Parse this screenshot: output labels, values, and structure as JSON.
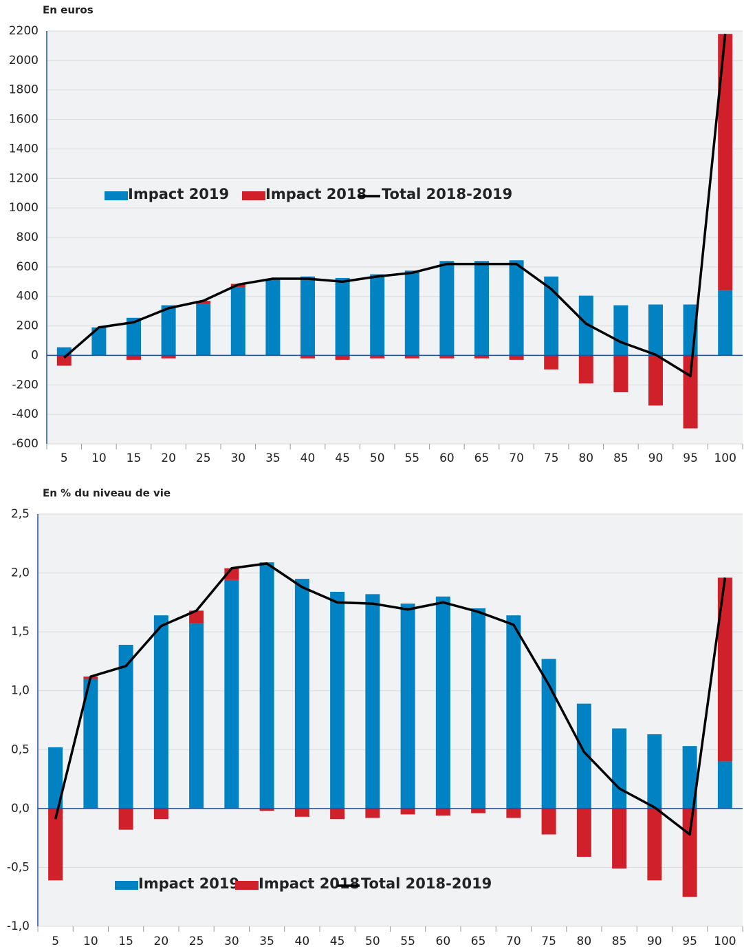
{
  "chart_data": [
    {
      "type": "bar",
      "title": "En euros",
      "categories": [
        5,
        10,
        15,
        20,
        25,
        30,
        35,
        40,
        45,
        50,
        55,
        60,
        65,
        70,
        75,
        80,
        85,
        90,
        95,
        100
      ],
      "series": [
        {
          "name": "Impact 2019",
          "type": "bar",
          "color": "#0082c3",
          "values": [
            55,
            190,
            255,
            340,
            350,
            460,
            520,
            535,
            525,
            550,
            575,
            640,
            640,
            645,
            535,
            405,
            340,
            345,
            345,
            440
          ]
        },
        {
          "name": "Impact 2018",
          "type": "bar",
          "color": "#d0202a",
          "values": [
            -70,
            0,
            -30,
            -20,
            20,
            25,
            0,
            -20,
            -30,
            -20,
            -20,
            -20,
            -20,
            -30,
            -95,
            -190,
            -250,
            -340,
            -495,
            1740
          ]
        },
        {
          "name": "Total 2018-2019",
          "type": "line",
          "color": "#000000",
          "values": [
            -15,
            190,
            225,
            320,
            370,
            480,
            520,
            520,
            500,
            535,
            560,
            620,
            620,
            620,
            450,
            215,
            90,
            5,
            -140,
            2180
          ]
        }
      ],
      "ylim": [
        -600,
        2200
      ],
      "yticks": [
        -600,
        -400,
        -200,
        0,
        200,
        400,
        600,
        800,
        1000,
        1200,
        1400,
        1600,
        1800,
        2000,
        2200
      ],
      "grid": true
    },
    {
      "type": "bar",
      "title": "En % du niveau de vie",
      "categories": [
        5,
        10,
        15,
        20,
        25,
        30,
        35,
        40,
        45,
        50,
        55,
        60,
        65,
        70,
        75,
        80,
        85,
        90,
        95,
        100
      ],
      "series": [
        {
          "name": "Impact 2019",
          "type": "bar",
          "color": "#0082c3",
          "values": [
            0.52,
            1.1,
            1.39,
            1.64,
            1.57,
            1.94,
            2.09,
            1.95,
            1.84,
            1.82,
            1.74,
            1.8,
            1.7,
            1.64,
            1.27,
            0.89,
            0.68,
            0.63,
            0.53,
            0.4
          ]
        },
        {
          "name": "Impact 2018",
          "type": "bar",
          "color": "#d0202a",
          "values": [
            -0.61,
            0.02,
            -0.18,
            -0.09,
            0.11,
            0.1,
            -0.02,
            -0.07,
            -0.09,
            -0.08,
            -0.05,
            -0.06,
            -0.04,
            -0.08,
            -0.22,
            -0.41,
            -0.51,
            -0.61,
            -0.75,
            1.56
          ]
        },
        {
          "name": "Total 2018-2019",
          "type": "line",
          "color": "#000000",
          "values": [
            -0.09,
            1.12,
            1.21,
            1.55,
            1.68,
            2.04,
            2.08,
            1.88,
            1.75,
            1.74,
            1.69,
            1.75,
            1.67,
            1.56,
            1.05,
            0.48,
            0.17,
            0.01,
            -0.22,
            1.96
          ]
        }
      ],
      "ylim": [
        -1.0,
        2.5
      ],
      "yticks": [
        {
          "value": -1.0,
          "label": "-1,0"
        },
        {
          "value": -0.5,
          "label": "-0,5"
        },
        {
          "value": 0,
          "label": "0,0"
        },
        {
          "value": 0.5,
          "label": "0,5"
        },
        {
          "value": 1.0,
          "label": "1,0"
        },
        {
          "value": 1.5,
          "label": "1,5"
        },
        {
          "value": 2.0,
          "label": "2,0"
        },
        {
          "value": 2.5,
          "label": "2,5"
        }
      ],
      "grid": true
    }
  ]
}
